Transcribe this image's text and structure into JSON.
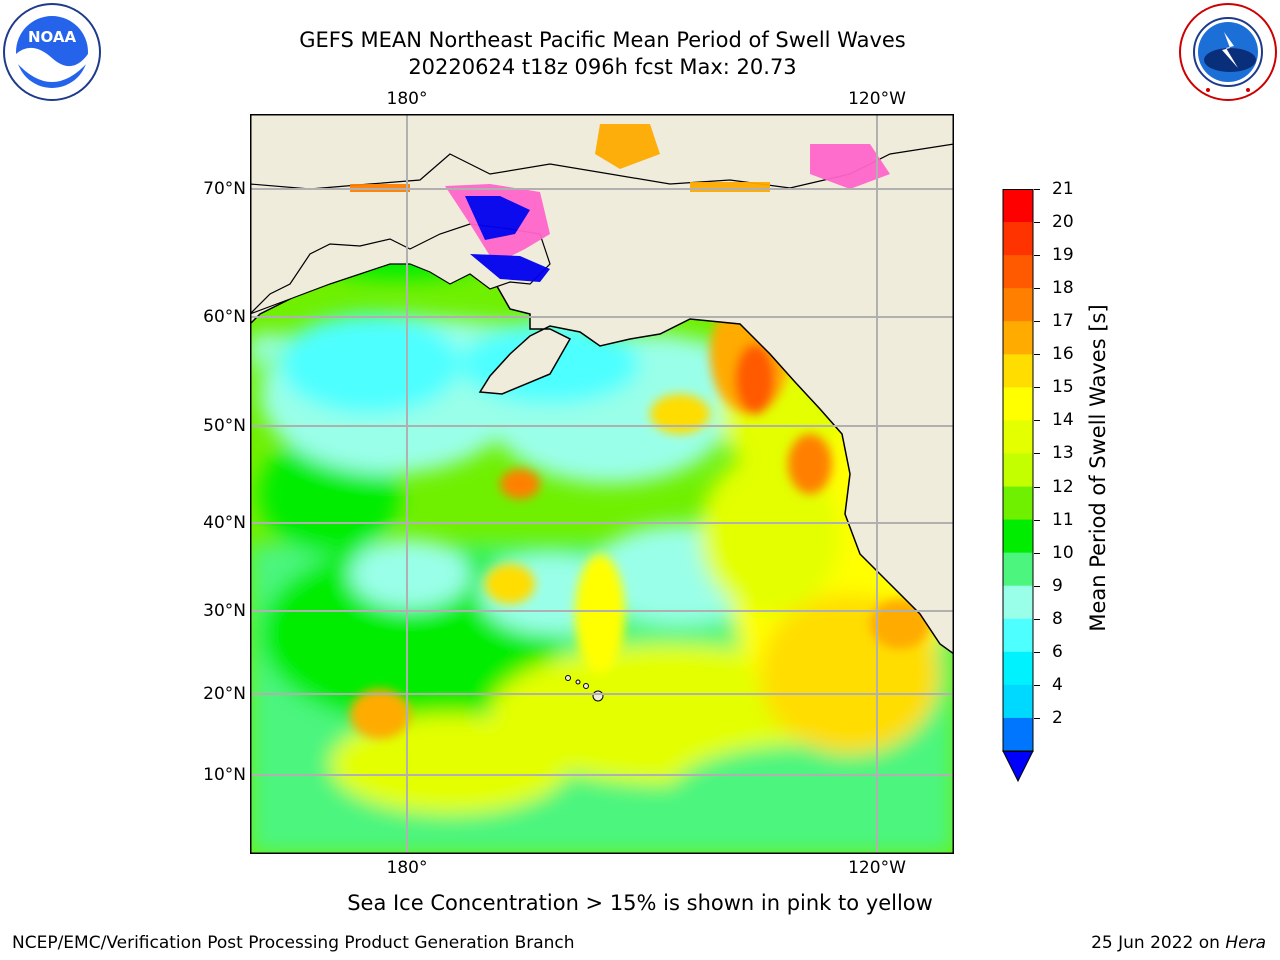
{
  "title": {
    "line1": "GEFS MEAN Northeast Pacific Mean Period of Swell Waves",
    "line2": "20220624 t18z 096h fcst   Max: 20.73"
  },
  "map": {
    "lon_labels_top": [
      "180°",
      "120°W"
    ],
    "lon_labels_bottom": [
      "180°",
      "120°W"
    ],
    "lat_labels": [
      "70°N",
      "60°N",
      "50°N",
      "40°N",
      "30°N",
      "20°N",
      "10°N"
    ],
    "land_color": "#efecdc",
    "grid_color": "#b0b0b0"
  },
  "colorbar": {
    "label": "Mean Period of Swell Waves [s]",
    "ticks": [
      "21",
      "20",
      "19",
      "18",
      "17",
      "16",
      "15",
      "14",
      "13",
      "12",
      "11",
      "10",
      "9",
      "8",
      "6",
      "4",
      "2"
    ],
    "colors": [
      "#ff0000",
      "#ff3300",
      "#ff5a00",
      "#ff8000",
      "#ffab00",
      "#ffdd00",
      "#ffff00",
      "#e3ff00",
      "#c4ff00",
      "#6ff000",
      "#00ed00",
      "#4cf57e",
      "#9affe8",
      "#4dffff",
      "#00f2ff",
      "#00d9ff",
      "#0076ff"
    ],
    "extend_color": "#0000ff"
  },
  "note": "Sea Ice Concentration > 15% is shown in pink to yellow",
  "footer": {
    "left": "NCEP/EMC/Verification Post Processing Product Generation Branch",
    "right_date": "25 Jun 2022 on ",
    "right_host": "Hera"
  },
  "logos": {
    "noaa_text": "NOAA",
    "noaa_ring": "NATIONAL OCEANIC AND ATMOSPHERIC ADMINISTRATION · U.S. DEPARTMENT OF COMMERCE",
    "nws_ring": "NATIONAL WEATHER SERVICE"
  }
}
